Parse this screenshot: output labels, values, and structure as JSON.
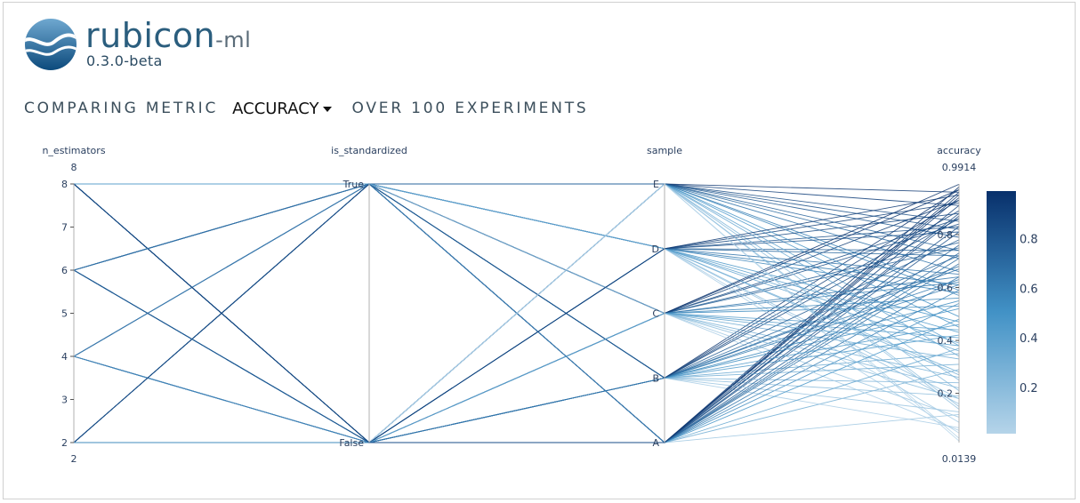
{
  "brand": {
    "name": "rubicon",
    "suffix": "-ml",
    "version": "0.3.0-beta"
  },
  "header": {
    "prefix": "COMPARING METRIC",
    "metric_selected": "ACCURACY",
    "suffix": "OVER 100 EXPERIMENTS"
  },
  "colors": {
    "line_high": "#08306b",
    "line_low": "#b5d4e9",
    "axis_line": "#b0b0b0",
    "text": "#2a3f5f"
  },
  "chart_data": {
    "type": "parallel_coordinates",
    "dimensions": [
      {
        "label": "n_estimators",
        "kind": "numeric",
        "range": [
          2,
          8
        ],
        "range_labels": [
          "8",
          "2"
        ],
        "ticks": [
          "2",
          "3",
          "4",
          "5",
          "6",
          "7",
          "8"
        ]
      },
      {
        "label": "is_standardized",
        "kind": "categorical",
        "categories": [
          "False",
          "True"
        ]
      },
      {
        "label": "sample",
        "kind": "categorical",
        "categories": [
          "A",
          "B",
          "C",
          "D",
          "E"
        ]
      },
      {
        "label": "accuracy",
        "kind": "numeric",
        "range": [
          0.0139,
          0.9914
        ],
        "range_labels": [
          "0.9914",
          "0.0139"
        ],
        "ticks": [
          "0.2",
          "0.4",
          "0.6",
          "0.8"
        ]
      }
    ],
    "colorbar": {
      "ticks": [
        "0.2",
        "0.4",
        "0.6",
        "0.8"
      ],
      "range": [
        0.0139,
        0.9914
      ]
    },
    "records": [
      [
        8,
        "True",
        "E",
        0.91
      ],
      [
        8,
        "True",
        "D",
        0.74
      ],
      [
        8,
        "True",
        "C",
        0.62
      ],
      [
        8,
        "True",
        "B",
        0.35
      ],
      [
        8,
        "True",
        "A",
        0.88
      ],
      [
        8,
        "False",
        "E",
        0.45
      ],
      [
        8,
        "False",
        "D",
        0.18
      ],
      [
        8,
        "False",
        "C",
        0.77
      ],
      [
        8,
        "False",
        "B",
        0.52
      ],
      [
        8,
        "False",
        "A",
        0.29
      ],
      [
        6,
        "True",
        "E",
        0.66
      ],
      [
        6,
        "True",
        "D",
        0.83
      ],
      [
        6,
        "True",
        "C",
        0.41
      ],
      [
        6,
        "True",
        "B",
        0.97
      ],
      [
        6,
        "True",
        "A",
        0.12
      ],
      [
        6,
        "False",
        "E",
        0.25
      ],
      [
        6,
        "False",
        "D",
        0.58
      ],
      [
        6,
        "False",
        "C",
        0.93
      ],
      [
        6,
        "False",
        "B",
        0.07
      ],
      [
        6,
        "False",
        "A",
        0.71
      ],
      [
        4,
        "True",
        "E",
        0.38
      ],
      [
        4,
        "True",
        "D",
        0.05
      ],
      [
        4,
        "True",
        "C",
        0.86
      ],
      [
        4,
        "True",
        "B",
        0.63
      ],
      [
        4,
        "True",
        "A",
        0.95
      ],
      [
        4,
        "False",
        "E",
        0.79
      ],
      [
        4,
        "False",
        "D",
        0.47
      ],
      [
        4,
        "False",
        "C",
        0.22
      ],
      [
        4,
        "False",
        "B",
        0.89
      ],
      [
        4,
        "False",
        "A",
        0.54
      ],
      [
        2,
        "True",
        "E",
        0.15
      ],
      [
        2,
        "True",
        "D",
        0.92
      ],
      [
        2,
        "True",
        "C",
        0.33
      ],
      [
        2,
        "True",
        "B",
        0.68
      ],
      [
        2,
        "True",
        "A",
        0.81
      ],
      [
        2,
        "False",
        "E",
        0.57
      ],
      [
        2,
        "False",
        "D",
        0.28
      ],
      [
        2,
        "False",
        "C",
        0.75
      ],
      [
        2,
        "False",
        "B",
        0.42
      ],
      [
        2,
        "False",
        "A",
        0.98
      ],
      [
        8,
        "True",
        "E",
        0.03
      ],
      [
        8,
        "True",
        "D",
        0.61
      ],
      [
        8,
        "True",
        "C",
        0.84
      ],
      [
        8,
        "True",
        "B",
        0.19
      ],
      [
        8,
        "True",
        "A",
        0.73
      ],
      [
        8,
        "False",
        "E",
        0.96
      ],
      [
        8,
        "False",
        "D",
        0.36
      ],
      [
        8,
        "False",
        "C",
        0.11
      ],
      [
        8,
        "False",
        "B",
        0.67
      ],
      [
        8,
        "False",
        "A",
        0.87
      ],
      [
        6,
        "True",
        "E",
        0.49
      ],
      [
        6,
        "True",
        "D",
        0.72
      ],
      [
        6,
        "True",
        "C",
        0.26
      ],
      [
        6,
        "True",
        "B",
        0.55
      ],
      [
        6,
        "True",
        "A",
        0.94
      ],
      [
        6,
        "False",
        "E",
        0.82
      ],
      [
        6,
        "False",
        "D",
        0.09
      ],
      [
        6,
        "False",
        "C",
        0.64
      ],
      [
        6,
        "False",
        "B",
        0.31
      ],
      [
        6,
        "False",
        "A",
        0.76
      ],
      [
        4,
        "True",
        "E",
        0.21
      ],
      [
        4,
        "True",
        "D",
        0.88
      ],
      [
        4,
        "True",
        "C",
        0.53
      ],
      [
        4,
        "True",
        "B",
        0.13
      ],
      [
        4,
        "True",
        "A",
        0.69
      ],
      [
        4,
        "False",
        "E",
        0.71
      ],
      [
        4,
        "False",
        "D",
        0.39
      ],
      [
        4,
        "False",
        "C",
        0.97
      ],
      [
        4,
        "False",
        "B",
        0.24
      ],
      [
        4,
        "False",
        "A",
        0.59
      ],
      [
        2,
        "True",
        "E",
        0.85
      ],
      [
        2,
        "True",
        "D",
        0.16
      ],
      [
        2,
        "True",
        "C",
        0.44
      ],
      [
        2,
        "True",
        "B",
        0.78
      ],
      [
        2,
        "True",
        "A",
        0.91
      ],
      [
        2,
        "False",
        "E",
        0.34
      ],
      [
        2,
        "False",
        "D",
        0.65
      ],
      [
        2,
        "False",
        "C",
        0.06
      ],
      [
        2,
        "False",
        "B",
        0.93
      ],
      [
        2,
        "False",
        "A",
        0.48
      ],
      [
        8,
        "True",
        "E",
        0.59
      ],
      [
        8,
        "True",
        "D",
        0.27
      ],
      [
        8,
        "True",
        "C",
        0.99
      ],
      [
        8,
        "True",
        "B",
        0.46
      ],
      [
        8,
        "True",
        "A",
        0.37
      ],
      [
        8,
        "False",
        "E",
        0.14
      ],
      [
        8,
        "False",
        "D",
        0.81
      ],
      [
        8,
        "False",
        "C",
        0.56
      ],
      [
        8,
        "False",
        "B",
        0.72
      ],
      [
        8,
        "False",
        "A",
        0.96
      ],
      [
        6,
        "True",
        "E",
        0.74
      ],
      [
        6,
        "True",
        "D",
        0.43
      ],
      [
        6,
        "True",
        "C",
        0.18
      ],
      [
        6,
        "True",
        "B",
        0.86
      ],
      [
        6,
        "True",
        "A",
        0.64
      ],
      [
        6,
        "False",
        "E",
        0.02
      ],
      [
        6,
        "False",
        "D",
        0.95
      ],
      [
        6,
        "False",
        "C",
        0.38
      ],
      [
        6,
        "False",
        "B",
        0.61
      ],
      [
        6,
        "False",
        "A",
        0.83
      ]
    ]
  }
}
